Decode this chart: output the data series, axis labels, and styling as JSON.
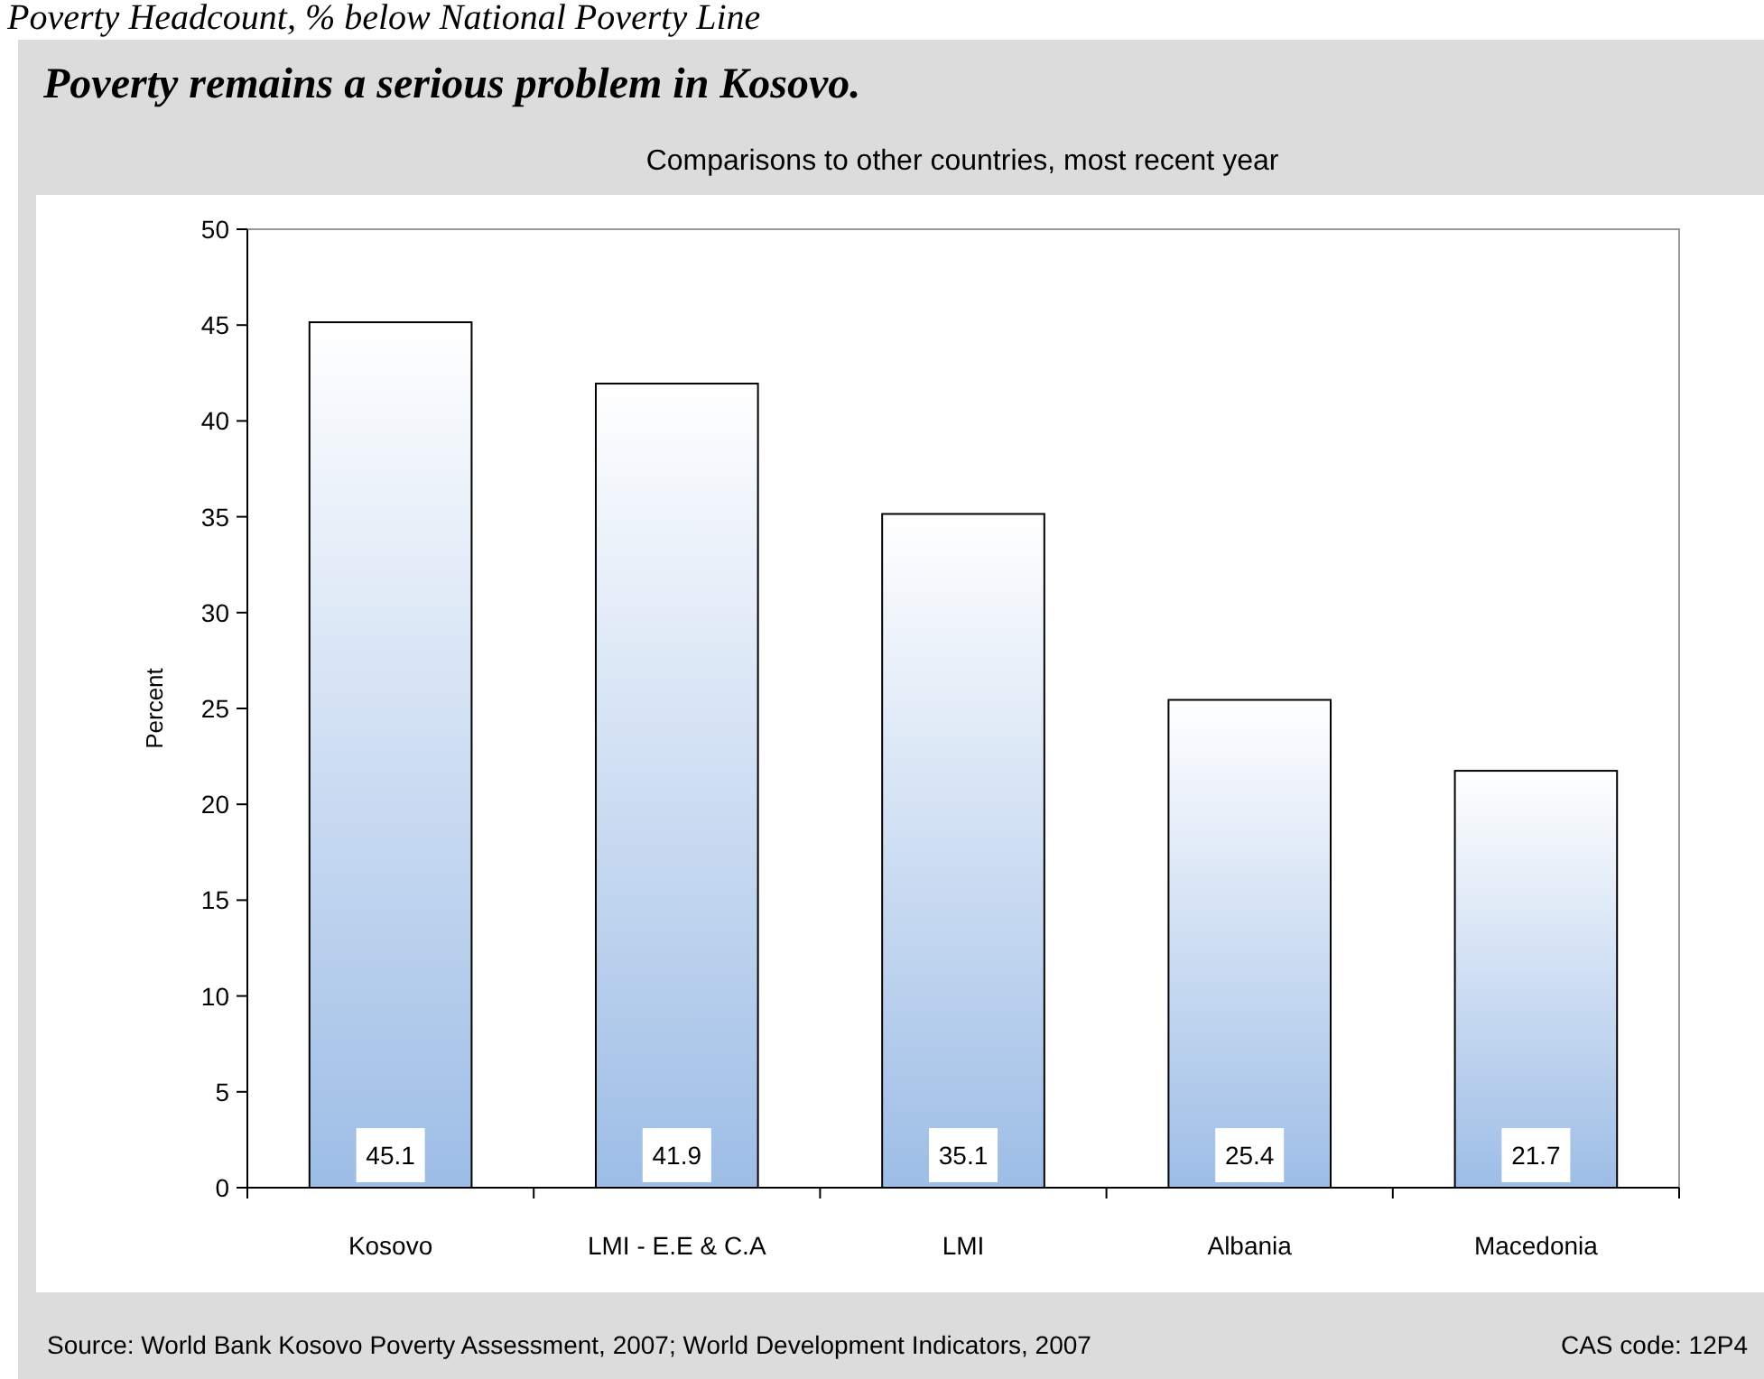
{
  "chart_data": {
    "type": "bar",
    "title": "Poverty remains a serious problem in Kosovo.",
    "subtitle": "Comparisons to other countries, most recent year",
    "ylabel": "Percent",
    "annotations": [
      "Poverty Headcount, % below National Poverty Line",
      "Source: World Bank Kosovo Poverty Assessment, 2007; World Development Indicators, 2007",
      "CAS code: 12P4"
    ],
    "categories": [
      "Kosovo",
      "LMI - E.E & C.A",
      "LMI",
      "Albania",
      "Macedonia"
    ],
    "values": [
      45.1,
      41.9,
      35.1,
      25.4,
      21.7
    ],
    "color": "#9dbde6",
    "ylim": [
      0,
      50
    ],
    "yticks": [
      0,
      5,
      10,
      15,
      20,
      25,
      30,
      35,
      40,
      45,
      50
    ],
    "data_labels": true,
    "grid": false
  }
}
